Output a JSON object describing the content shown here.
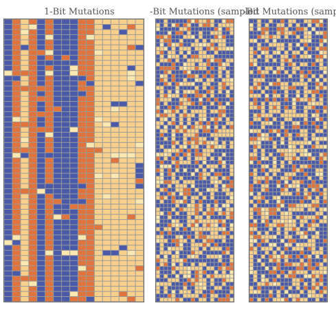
{
  "panels": [
    {
      "title": "1-Bit Mutations",
      "cols": 17,
      "rows": 55
    },
    {
      "title": "-Bit Mutations (sampled",
      "cols": 20,
      "rows": 72
    },
    {
      "title": "-Bit Mutations (sampled",
      "cols": 20,
      "rows": 72
    }
  ],
  "colors": {
    "blue": "#4a5aa8",
    "light": "#f8d08c",
    "orange": "#e0743c",
    "cream": "#fbe8b0",
    "grid_line": "#9a9a9a"
  }
}
